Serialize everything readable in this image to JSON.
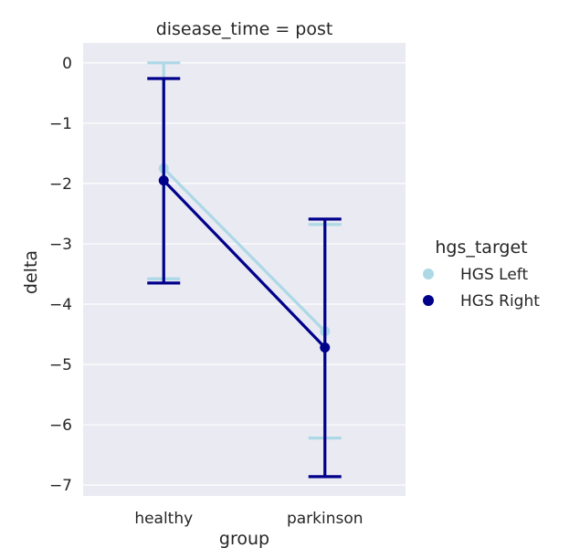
{
  "chart_data": {
    "type": "line",
    "title": "disease_time = post",
    "xlabel": "group",
    "ylabel": "delta",
    "categories": [
      "healthy",
      "parkinson"
    ],
    "ylim": [
      -7.18,
      0.33
    ],
    "yticks": [
      0,
      -1,
      -2,
      -3,
      -4,
      -5,
      -6,
      -7
    ],
    "ytick_labels": [
      "0",
      "−1",
      "−2",
      "−3",
      "−4",
      "−5",
      "−6",
      "−7"
    ],
    "grid": true,
    "legend": {
      "title": "hgs_target",
      "placement": "right"
    },
    "series": [
      {
        "name": "HGS Left",
        "color": "#add8e6",
        "values": [
          -1.75,
          -4.45
        ],
        "ci_low": [
          -3.58,
          -6.22
        ],
        "ci_high": [
          0.0,
          -2.68
        ]
      },
      {
        "name": "HGS Right",
        "color": "#00008b",
        "values": [
          -1.95,
          -4.72
        ],
        "ci_low": [
          -3.65,
          -6.86
        ],
        "ci_high": [
          -0.26,
          -2.59
        ]
      }
    ]
  }
}
